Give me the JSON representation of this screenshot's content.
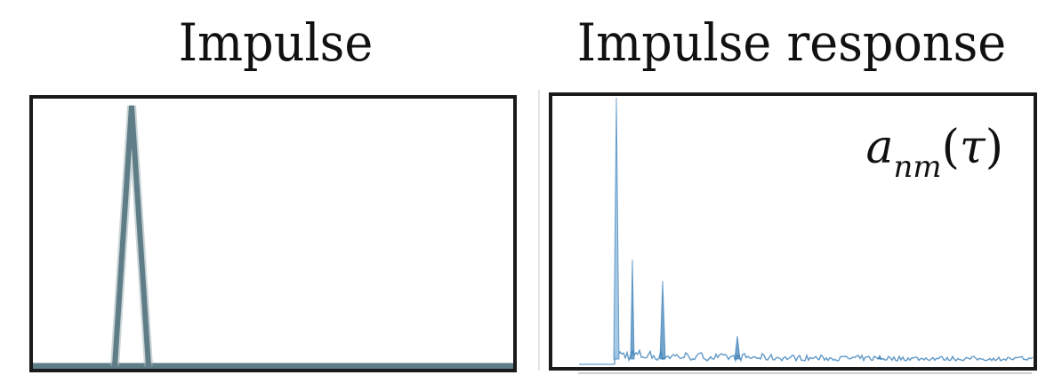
{
  "left_panel": {
    "title": "Impulse",
    "signal_color": "#5f7d87",
    "signal_shadow": "#9fb1b7",
    "baseline_color": "#5f7d87"
  },
  "right_panel": {
    "title": "Impulse response",
    "label_base": "a",
    "label_subscript": "nm",
    "label_open": "(",
    "label_arg": "τ",
    "label_close": ")",
    "signal_color": "#3a7fb8",
    "signal_light": "#9cc3e2"
  },
  "frame_color": "#1a1a1a"
}
